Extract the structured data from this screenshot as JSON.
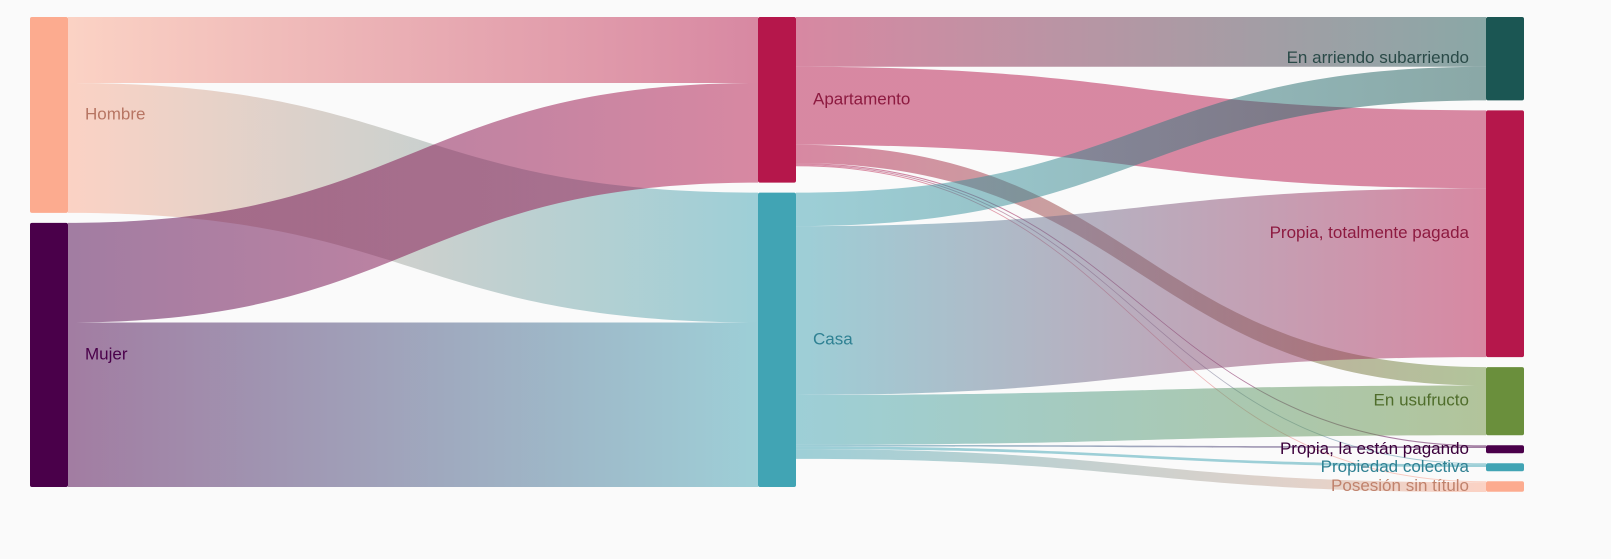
{
  "chart_data": {
    "type": "sankey",
    "nodes": [
      {
        "id": "hombre",
        "label": "Hombre",
        "color": "#fcab8f",
        "label_color": "#b77563"
      },
      {
        "id": "mujer",
        "label": "Mujer",
        "color": "#4a004a",
        "label_color": "#4a004a"
      },
      {
        "id": "apartamento",
        "label": "Apartamento",
        "color": "#b5174b",
        "label_color": "#8d1a40"
      },
      {
        "id": "casa",
        "label": "Casa",
        "color": "#41a4b4",
        "label_color": "#2f8193"
      },
      {
        "id": "arriendo",
        "label": "En arriendo subarriendo",
        "color": "#1b5653",
        "label_color": "#2a4a48"
      },
      {
        "id": "pagada",
        "label": "Propia, totalmente pagada",
        "color": "#b5174b",
        "label_color": "#8d1a40"
      },
      {
        "id": "usufructo",
        "label": "En usufructo",
        "color": "#6a8f3c",
        "label_color": "#4f6d2b"
      },
      {
        "id": "pagando",
        "label": "Propia, la están pagando",
        "color": "#4a004a",
        "label_color": "#3b003b"
      },
      {
        "id": "colectiva",
        "label": "Propiedad colectiva",
        "color": "#41a4b4",
        "label_color": "#2f8193"
      },
      {
        "id": "sintitulo",
        "label": "Posesión sin título",
        "color": "#fcab8f",
        "label_color": "#c0826c"
      }
    ],
    "links": [
      {
        "source": "hombre",
        "target": "apartamento",
        "value": 61
      },
      {
        "source": "hombre",
        "target": "casa",
        "value": 120
      },
      {
        "source": "mujer",
        "target": "apartamento",
        "value": 92
      },
      {
        "source": "mujer",
        "target": "casa",
        "value": 152
      },
      {
        "source": "apartamento",
        "target": "arriendo",
        "value": 46
      },
      {
        "source": "apartamento",
        "target": "pagada",
        "value": 72
      },
      {
        "source": "apartamento",
        "target": "usufructo",
        "value": 17
      },
      {
        "source": "apartamento",
        "target": "pagando",
        "value": 1
      },
      {
        "source": "apartamento",
        "target": "colectiva",
        "value": 0.6
      },
      {
        "source": "apartamento",
        "target": "sintitulo",
        "value": 0.6
      },
      {
        "source": "casa",
        "target": "arriendo",
        "value": 31
      },
      {
        "source": "casa",
        "target": "pagada",
        "value": 156
      },
      {
        "source": "casa",
        "target": "usufructo",
        "value": 46
      },
      {
        "source": "casa",
        "target": "pagando",
        "value": 1.5
      },
      {
        "source": "casa",
        "target": "colectiva",
        "value": 2.5
      },
      {
        "source": "casa",
        "target": "sintitulo",
        "value": 9
      }
    ]
  }
}
